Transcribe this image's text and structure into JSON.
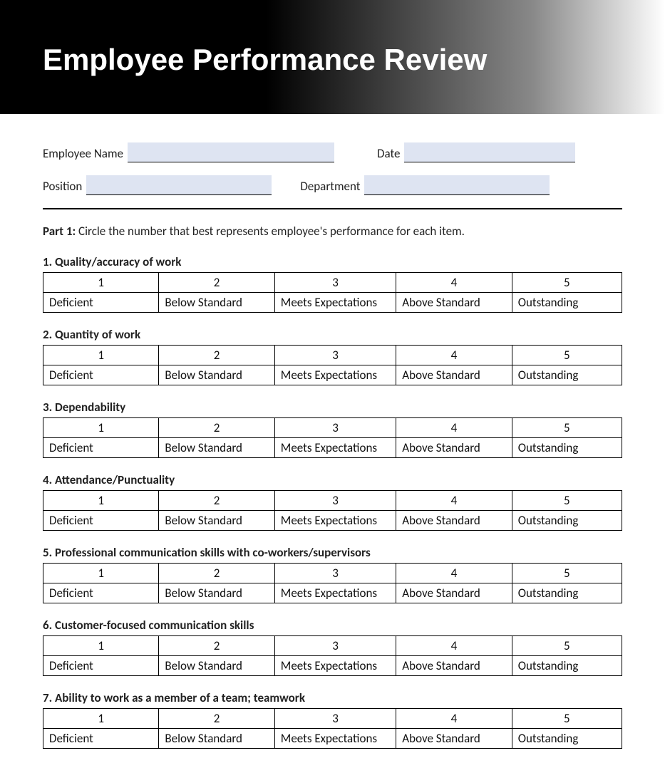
{
  "header": {
    "title": "Employee Performance Review"
  },
  "info": {
    "employee_name_label": "Employee Name",
    "date_label": "Date",
    "position_label": "Position",
    "department_label": "Department"
  },
  "part1": {
    "prefix": "Part 1:",
    "instruction": "Circle the number that best represents employee's performance for each item."
  },
  "rating_numbers": [
    "1",
    "2",
    "3",
    "4",
    "5"
  ],
  "rating_labels": [
    "Deficient",
    "Below Standard",
    "Meets Expectations",
    "Above Standard",
    "Outstanding"
  ],
  "items": [
    {
      "num": "1.",
      "title": "Quality/accuracy of work"
    },
    {
      "num": "2.",
      "title": "Quantity of work"
    },
    {
      "num": "3.",
      "title": "Dependability"
    },
    {
      "num": "4.",
      "title": "Attendance/Punctuality"
    },
    {
      "num": "5.",
      "title": "Professional communication skills with co-workers/supervisors"
    },
    {
      "num": "6.",
      "title": "Customer-focused communication skills"
    },
    {
      "num": "7.",
      "title": "Ability to work as a member of a team; teamwork"
    }
  ],
  "styling": {
    "col_widths_pct": [
      20,
      20,
      21,
      20,
      19
    ],
    "field_bg": "#dee4f2",
    "border_color": "#000000",
    "text_color": "#222222",
    "header_gradient_from": "#000000",
    "header_gradient_to": "#ffffff",
    "title_fontsize": 42,
    "body_fontsize": 17
  }
}
